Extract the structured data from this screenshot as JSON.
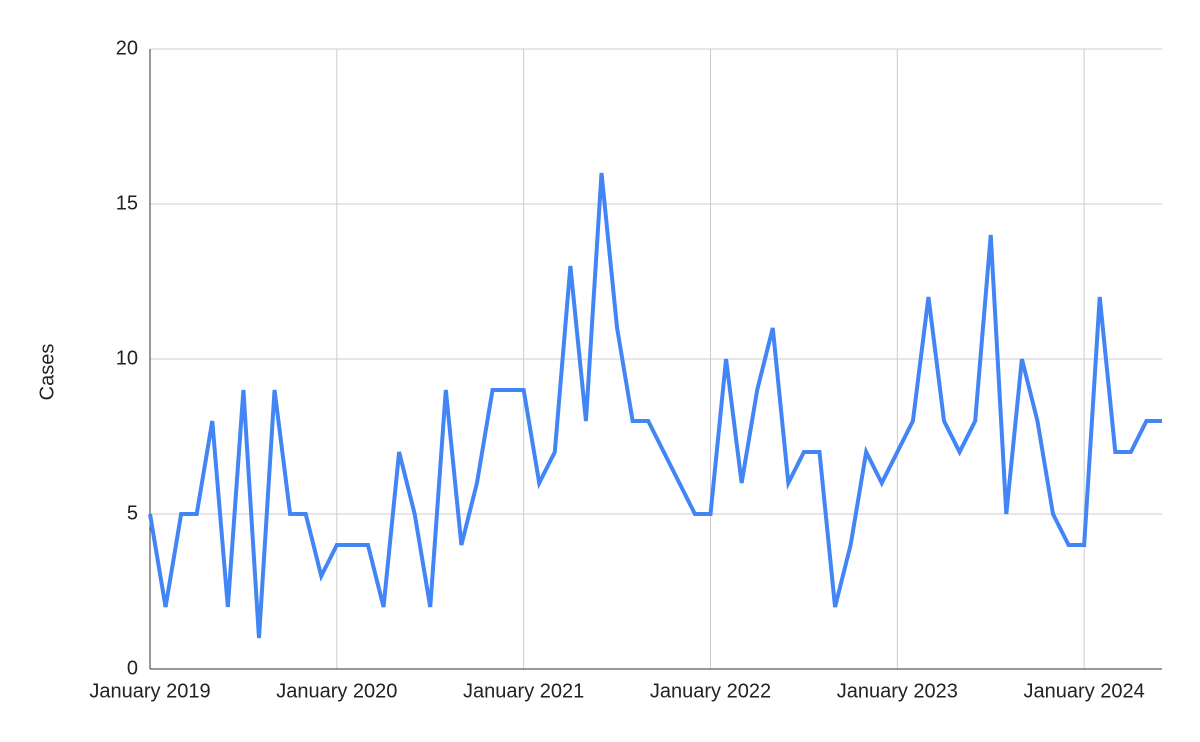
{
  "chart_data": {
    "type": "line",
    "y_label": "Cases",
    "categories": [
      "January 2019",
      null,
      null,
      null,
      null,
      null,
      null,
      null,
      null,
      null,
      null,
      null,
      "January 2020",
      null,
      null,
      null,
      null,
      null,
      null,
      null,
      null,
      null,
      null,
      null,
      "January 2021",
      null,
      null,
      null,
      null,
      null,
      null,
      null,
      null,
      null,
      null,
      null,
      "January 2022",
      null,
      null,
      null,
      null,
      null,
      null,
      null,
      null,
      null,
      null,
      null,
      "January 2023",
      null,
      null,
      null,
      null,
      null,
      null,
      null,
      null,
      null,
      null,
      null,
      "January 2024",
      null,
      null,
      null,
      null,
      null
    ],
    "series": [
      {
        "name": "Cases",
        "color": "#4285f4",
        "values": [
          5,
          2,
          5,
          5,
          8,
          2,
          9,
          1,
          9,
          5,
          5,
          3,
          4,
          4,
          4,
          2,
          7,
          5,
          2,
          9,
          4,
          6,
          9,
          9,
          9,
          6,
          7,
          13,
          8,
          16,
          11,
          8,
          8,
          7,
          6,
          5,
          5,
          10,
          6,
          9,
          11,
          6,
          7,
          7,
          2,
          4,
          7,
          6,
          7,
          8,
          12,
          8,
          7,
          8,
          14,
          5,
          10,
          8,
          5,
          4,
          4,
          12,
          7,
          7,
          8,
          8
        ]
      }
    ],
    "ylim": [
      0,
      20
    ],
    "yticks": [
      0,
      5,
      10,
      15,
      20
    ],
    "grid": true
  }
}
